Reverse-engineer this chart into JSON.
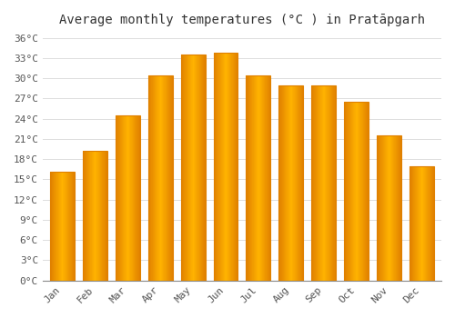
{
  "title": "Average monthly temperatures (°C ) in Pratāpgarh",
  "months": [
    "Jan",
    "Feb",
    "Mar",
    "Apr",
    "May",
    "Jun",
    "Jul",
    "Aug",
    "Sep",
    "Oct",
    "Nov",
    "Dec"
  ],
  "values": [
    16.2,
    19.2,
    24.5,
    30.5,
    33.5,
    33.8,
    30.5,
    29.0,
    29.0,
    26.5,
    21.5,
    17.0
  ],
  "bar_color_center": "#FFB300",
  "bar_color_edge": "#E08000",
  "background_color": "#FFFFFF",
  "grid_color": "#DDDDDD",
  "ytick_labels": [
    "0°C",
    "3°C",
    "6°C",
    "9°C",
    "12°C",
    "15°C",
    "18°C",
    "21°C",
    "24°C",
    "27°C",
    "30°C",
    "33°C",
    "36°C"
  ],
  "ytick_values": [
    0,
    3,
    6,
    9,
    12,
    15,
    18,
    21,
    24,
    27,
    30,
    33,
    36
  ],
  "ylim": [
    0,
    37
  ],
  "title_fontsize": 10,
  "tick_fontsize": 8,
  "font_family": "monospace"
}
